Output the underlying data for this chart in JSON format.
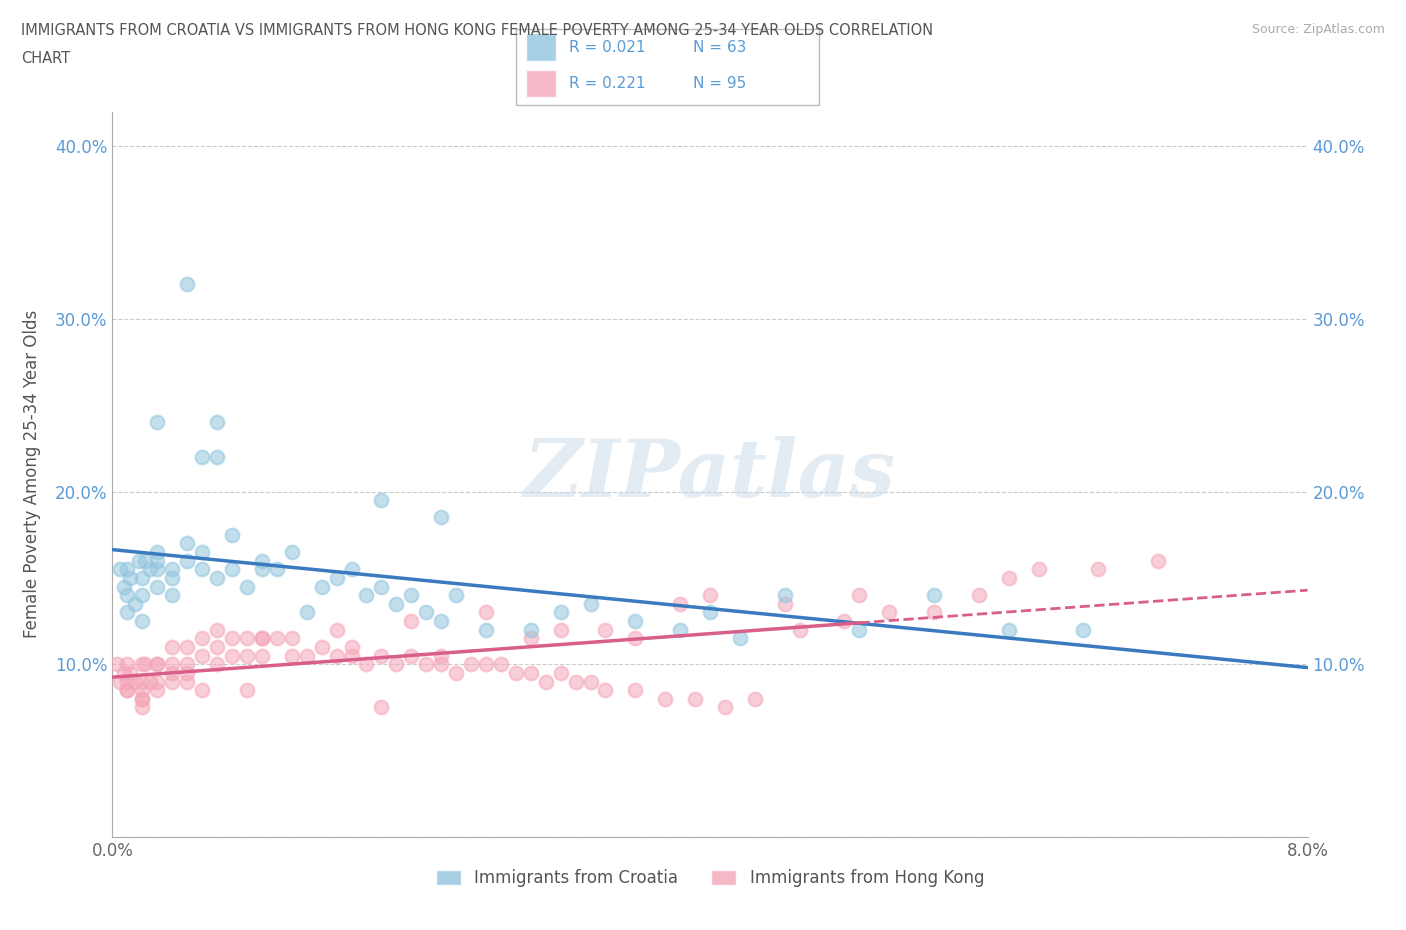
{
  "title": "IMMIGRANTS FROM CROATIA VS IMMIGRANTS FROM HONG KONG FEMALE POVERTY AMONG 25-34 YEAR OLDS CORRELATION\nCHART",
  "source": "Source: ZipAtlas.com",
  "ylabel": "Female Poverty Among 25-34 Year Olds",
  "xlim": [
    0.0,
    0.08
  ],
  "ylim": [
    0.0,
    0.42
  ],
  "x_ticks": [
    0.0,
    0.02,
    0.04,
    0.06,
    0.08
  ],
  "y_ticks": [
    0.0,
    0.1,
    0.2,
    0.3,
    0.4
  ],
  "y_tick_labels": [
    "",
    "10.0%",
    "20.0%",
    "30.0%",
    "40.0%"
  ],
  "color_croatia": "#92c5de",
  "color_hk": "#f4a6b8",
  "color_line_croatia": "#3a7abf",
  "color_line_hk": "#d95f8a",
  "watermark_text": "ZIPatlas",
  "legend_label_croatia": "Immigrants from Croatia",
  "legend_label_hk": "Immigrants from Hong Kong",
  "croatia_x": [
    0.0005,
    0.0008,
    0.001,
    0.001,
    0.001,
    0.0012,
    0.0015,
    0.0018,
    0.002,
    0.002,
    0.002,
    0.0022,
    0.0025,
    0.003,
    0.003,
    0.003,
    0.003,
    0.004,
    0.004,
    0.004,
    0.005,
    0.005,
    0.006,
    0.006,
    0.006,
    0.007,
    0.007,
    0.008,
    0.008,
    0.009,
    0.01,
    0.01,
    0.011,
    0.012,
    0.013,
    0.014,
    0.015,
    0.016,
    0.017,
    0.018,
    0.019,
    0.02,
    0.021,
    0.022,
    0.023,
    0.025,
    0.028,
    0.03,
    0.032,
    0.035,
    0.038,
    0.04,
    0.042,
    0.045,
    0.05,
    0.055,
    0.06,
    0.065,
    0.018,
    0.022,
    0.005,
    0.007,
    0.003
  ],
  "croatia_y": [
    0.155,
    0.145,
    0.14,
    0.13,
    0.155,
    0.15,
    0.135,
    0.16,
    0.15,
    0.14,
    0.125,
    0.16,
    0.155,
    0.145,
    0.155,
    0.16,
    0.165,
    0.14,
    0.155,
    0.15,
    0.17,
    0.16,
    0.155,
    0.165,
    0.22,
    0.15,
    0.22,
    0.175,
    0.155,
    0.145,
    0.155,
    0.16,
    0.155,
    0.165,
    0.13,
    0.145,
    0.15,
    0.155,
    0.14,
    0.145,
    0.135,
    0.14,
    0.13,
    0.125,
    0.14,
    0.12,
    0.12,
    0.13,
    0.135,
    0.125,
    0.12,
    0.13,
    0.115,
    0.14,
    0.12,
    0.14,
    0.12,
    0.12,
    0.195,
    0.185,
    0.32,
    0.24,
    0.24
  ],
  "hk_x": [
    0.0003,
    0.0005,
    0.0008,
    0.001,
    0.001,
    0.001,
    0.0012,
    0.0015,
    0.002,
    0.002,
    0.002,
    0.002,
    0.0022,
    0.0025,
    0.003,
    0.003,
    0.003,
    0.004,
    0.004,
    0.004,
    0.005,
    0.005,
    0.005,
    0.006,
    0.006,
    0.007,
    0.007,
    0.008,
    0.009,
    0.009,
    0.01,
    0.01,
    0.011,
    0.012,
    0.013,
    0.014,
    0.015,
    0.016,
    0.017,
    0.018,
    0.019,
    0.02,
    0.021,
    0.022,
    0.023,
    0.024,
    0.025,
    0.026,
    0.027,
    0.028,
    0.029,
    0.03,
    0.031,
    0.032,
    0.033,
    0.035,
    0.037,
    0.039,
    0.041,
    0.043,
    0.046,
    0.049,
    0.052,
    0.055,
    0.058,
    0.062,
    0.066,
    0.07,
    0.038,
    0.025,
    0.02,
    0.015,
    0.01,
    0.008,
    0.005,
    0.003,
    0.002,
    0.04,
    0.05,
    0.06,
    0.03,
    0.035,
    0.028,
    0.022,
    0.016,
    0.012,
    0.007,
    0.004,
    0.002,
    0.001,
    0.045,
    0.033,
    0.018,
    0.009,
    0.006
  ],
  "hk_y": [
    0.1,
    0.09,
    0.095,
    0.1,
    0.09,
    0.085,
    0.095,
    0.09,
    0.1,
    0.09,
    0.085,
    0.08,
    0.1,
    0.09,
    0.1,
    0.09,
    0.085,
    0.11,
    0.1,
    0.09,
    0.11,
    0.1,
    0.095,
    0.115,
    0.105,
    0.12,
    0.11,
    0.115,
    0.115,
    0.105,
    0.115,
    0.105,
    0.115,
    0.115,
    0.105,
    0.11,
    0.105,
    0.105,
    0.1,
    0.105,
    0.1,
    0.105,
    0.1,
    0.1,
    0.095,
    0.1,
    0.1,
    0.1,
    0.095,
    0.095,
    0.09,
    0.095,
    0.09,
    0.09,
    0.085,
    0.085,
    0.08,
    0.08,
    0.075,
    0.08,
    0.12,
    0.125,
    0.13,
    0.13,
    0.14,
    0.155,
    0.155,
    0.16,
    0.135,
    0.13,
    0.125,
    0.12,
    0.115,
    0.105,
    0.09,
    0.1,
    0.075,
    0.14,
    0.14,
    0.15,
    0.12,
    0.115,
    0.115,
    0.105,
    0.11,
    0.105,
    0.1,
    0.095,
    0.08,
    0.085,
    0.135,
    0.12,
    0.075,
    0.085,
    0.085
  ]
}
